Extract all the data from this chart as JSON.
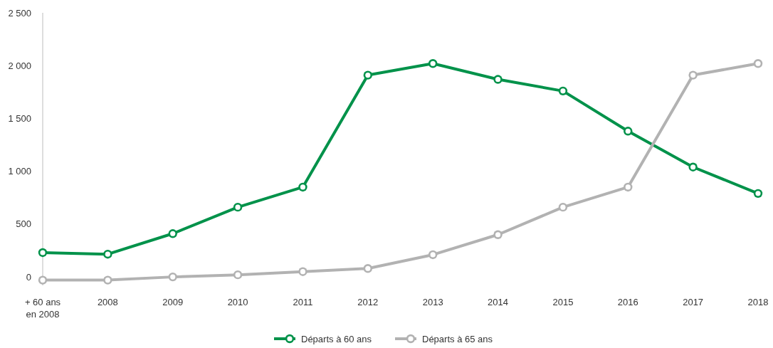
{
  "chart_data": {
    "type": "line",
    "categories": [
      "+ 60 ans\nen 2008",
      "2008",
      "2009",
      "2010",
      "2011",
      "2012",
      "2013",
      "2014",
      "2015",
      "2016",
      "2017",
      "2018"
    ],
    "series": [
      {
        "name": "Départs à 60 ans",
        "color": "#00924a",
        "values": [
          230,
          215,
          410,
          660,
          850,
          1910,
          2020,
          1870,
          1760,
          1380,
          1040,
          790
        ]
      },
      {
        "name": "Départs à 65 ans",
        "color": "#b2b2b2",
        "values": [
          -30,
          -30,
          0,
          20,
          50,
          80,
          210,
          400,
          660,
          850,
          1910,
          2020
        ]
      }
    ],
    "ylim": [
      -80,
      2500
    ],
    "yticks": [
      {
        "value": 0,
        "label": "0"
      },
      {
        "value": 500,
        "label": "500"
      },
      {
        "value": 1000,
        "label": "1 000"
      },
      {
        "value": 1500,
        "label": "1 500"
      },
      {
        "value": 2000,
        "label": "2 000"
      },
      {
        "value": 2500,
        "label": "2 500"
      }
    ],
    "grid": false,
    "legend": "bottom",
    "marker": "circle",
    "line_style": "solid"
  }
}
